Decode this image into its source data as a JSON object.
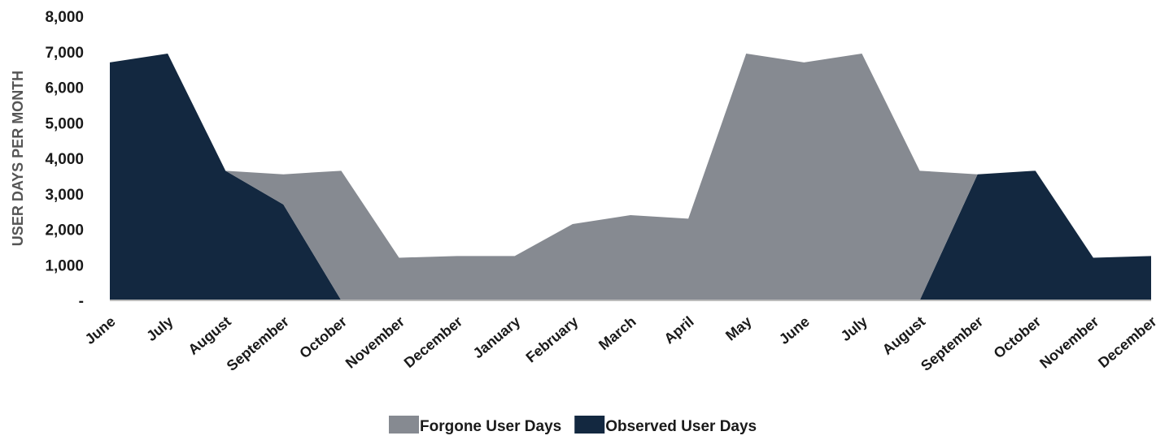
{
  "chart_data": {
    "type": "stacked-area",
    "y_label": "USER DAYS PER MONTH",
    "categories": [
      "June",
      "July",
      "August",
      "September",
      "October",
      "November",
      "December",
      "January",
      "February",
      "March",
      "April",
      "May",
      "June",
      "July",
      "August",
      "September",
      "October",
      "November",
      "December"
    ],
    "series": [
      {
        "name": "Observed User Days",
        "color": "#132840",
        "values": [
          6700,
          6950,
          3650,
          2700,
          0,
          0,
          0,
          0,
          0,
          0,
          0,
          0,
          0,
          0,
          0,
          3550,
          3650,
          1200,
          1250
        ]
      },
      {
        "name": "Forgone User Days",
        "color": "#868a91",
        "values": [
          0,
          0,
          0,
          850,
          3650,
          1200,
          1250,
          1250,
          2150,
          2400,
          2300,
          6950,
          6700,
          6950,
          3650,
          0,
          0,
          0,
          0
        ]
      }
    ],
    "legend_order": [
      1,
      0
    ],
    "ylim": [
      0,
      8000
    ],
    "yticks": [
      {
        "value": 0,
        "label": "-"
      },
      {
        "value": 1000,
        "label": "1,000"
      },
      {
        "value": 2000,
        "label": "2,000"
      },
      {
        "value": 3000,
        "label": "3,000"
      },
      {
        "value": 4000,
        "label": "4,000"
      },
      {
        "value": 5000,
        "label": "5,000"
      },
      {
        "value": 6000,
        "label": "6,000"
      },
      {
        "value": 7000,
        "label": "7,000"
      },
      {
        "value": 8000,
        "label": "8,000"
      }
    ]
  }
}
